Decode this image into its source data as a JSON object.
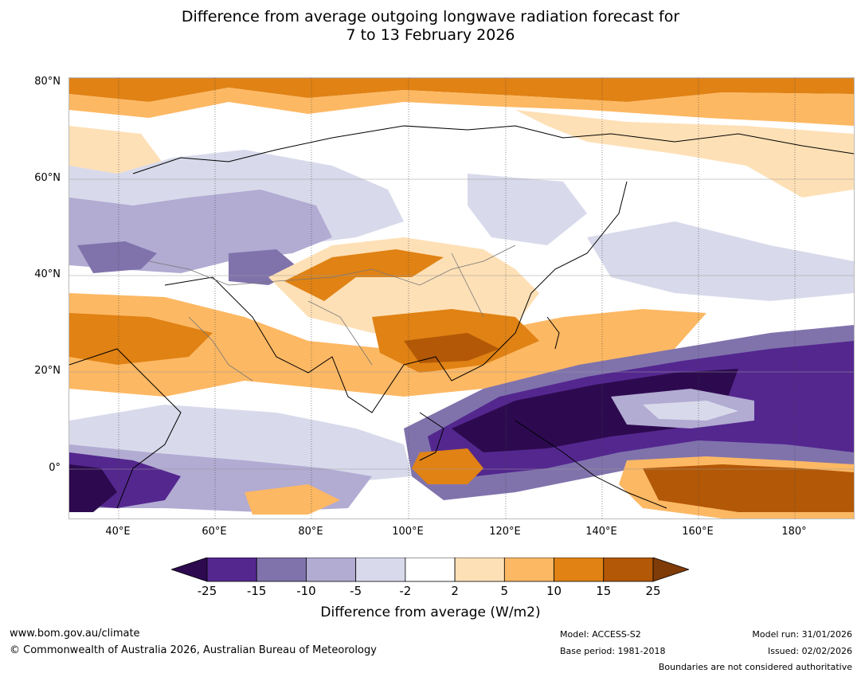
{
  "title_line1": "Difference from average outgoing longwave radiation forecast for",
  "title_line2": "7 to 13 February 2026",
  "lat_labels": [
    "80°N",
    "60°N",
    "40°N",
    "20°N",
    "0°"
  ],
  "lon_labels": [
    "40°E",
    "60°E",
    "80°E",
    "100°E",
    "120°E",
    "140°E",
    "160°E",
    "180°"
  ],
  "colorbar": {
    "ticks": [
      "-25",
      "-15",
      "-10",
      "-5",
      "-2",
      "2",
      "5",
      "10",
      "15",
      "25"
    ],
    "colors": [
      "#2d0a4f",
      "#54278f",
      "#8073ac",
      "#b2abd2",
      "#d8daeb",
      "#ffffff",
      "#fee0b6",
      "#fdb863",
      "#e08214",
      "#b35806",
      "#7f3b08"
    ],
    "title": "Difference from average (W/m2)"
  },
  "footer": {
    "url": "www.bom.gov.au/climate",
    "copyright": "© Commonwealth of Australia 2026, Australian Bureau of Meteorology",
    "model": "Model: ACCESS-S2",
    "base_period": "Base period: 1981-2018",
    "model_run": "Model run: 31/01/2026",
    "issued": "Issued: 02/02/2026",
    "disclaimer": "Boundaries are not considered authoritative"
  }
}
